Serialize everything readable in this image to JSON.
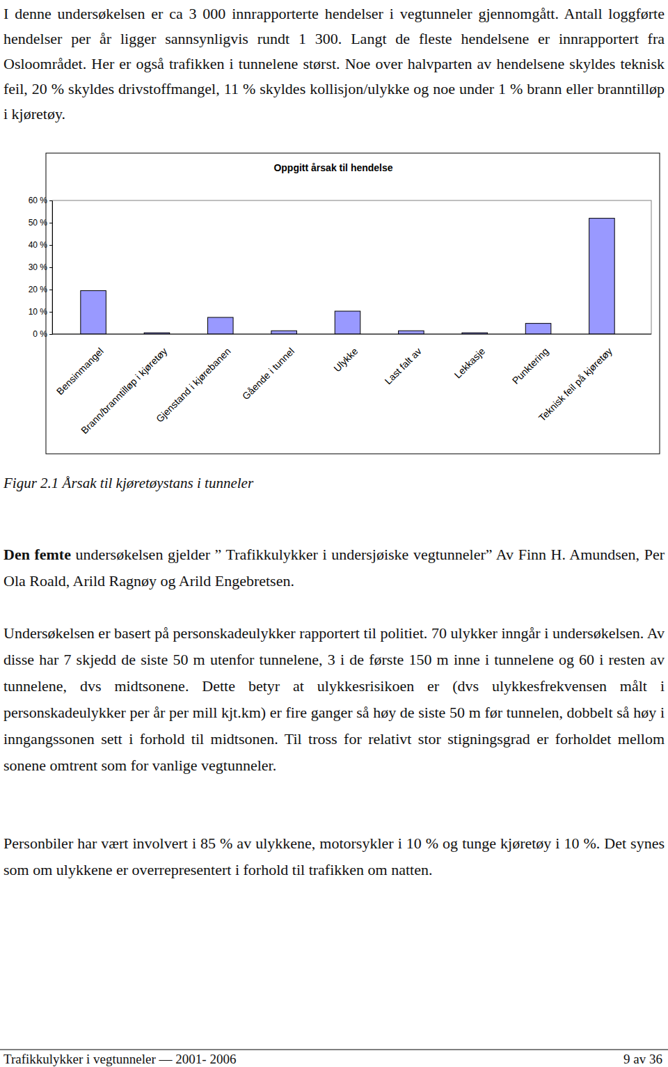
{
  "paragraphs": [
    {
      "text": "I denne undersøkelsen er ca 3 000 innrapporterte hendelser i vegtunneler gjennomgått. Antall loggførte hendelser per år ligger sannsynligvis rundt 1 300. Langt de fleste hendelsene er innrapportert fra Osloområdet. Her er også trafikken i tunnelene størst. Noe over halvparten av hendelsene skyldes teknisk feil, 20 % skyldes drivstoffmangel, 11 % skyldes kollisjon/ulykke og noe under 1 % brann eller branntilløp i kjøretøy."
    }
  ],
  "chart_data": {
    "type": "bar",
    "title": "Oppgitt årsak til hendelse",
    "categories": [
      "Bensinmangel",
      "Brann/branntilløp i kjøretøy",
      "Gjenstand i kjørebanen",
      "Gående i tunnel",
      "Ulykke",
      "Last falt av",
      "Lekkasje",
      "Punktering",
      "Teknisk feil på kjøretøy"
    ],
    "values": [
      19.5,
      0.6,
      7.5,
      1.5,
      10.3,
      1.5,
      0.6,
      4.8,
      52
    ],
    "color": "#9999ff",
    "ylim": [
      0,
      60
    ],
    "yticks": [
      {
        "value": 0,
        "label": "0 %"
      },
      {
        "value": 10,
        "label": "10 %"
      },
      {
        "value": 20,
        "label": "20 %"
      },
      {
        "value": 30,
        "label": "30 %"
      },
      {
        "value": 40,
        "label": "40 %"
      },
      {
        "value": 50,
        "label": "50 %"
      },
      {
        "value": 60,
        "label": "60 %"
      }
    ],
    "grid": false
  },
  "figure_caption": "Figur 2.1 Årsak til kjøretøystans i tunneler",
  "body": [
    {
      "bold_lead": "Den femte",
      "text": " undersøkelsen gjelder ” Trafikkulykker i undersjøiske vegtunneler” Av Finn H. Amundsen, Per Ola Roald, Arild Ragnøy og Arild Engebretsen."
    },
    {
      "text": "Undersøkelsen er basert på personskadeulykker rapportert til politiet. 70 ulykker inngår i undersøkelsen. Av disse har 7 skjedd de siste 50 m utenfor tunnelene, 3 i de første 150 m inne i tunnelene og 60 i resten av tunnelene, dvs midtsonene. Dette betyr at ulykkesrisikoen er (dvs ulykkesfrekvensen målt i personskadeulykker per år per mill kjt.km) er fire ganger så høy de siste 50 m før tunnelen, dobbelt så høy i inngangssonen sett i forhold til midtsonen. Til tross for relativt stor stigningsgrad er forholdet mellom sonene omtrent som for vanlige vegtunneler."
    },
    {
      "text": "Personbiler har vært involvert i 85 % av ulykkene, motorsykler i 10 % og tunge kjøretøy i 10 %. Det synes som om ulykkene er overrepresentert i forhold til trafikken om natten."
    }
  ],
  "footer": {
    "left": "Trafikkulykker i vegtunneler — 2001- 2006",
    "right": "9 av 36"
  }
}
